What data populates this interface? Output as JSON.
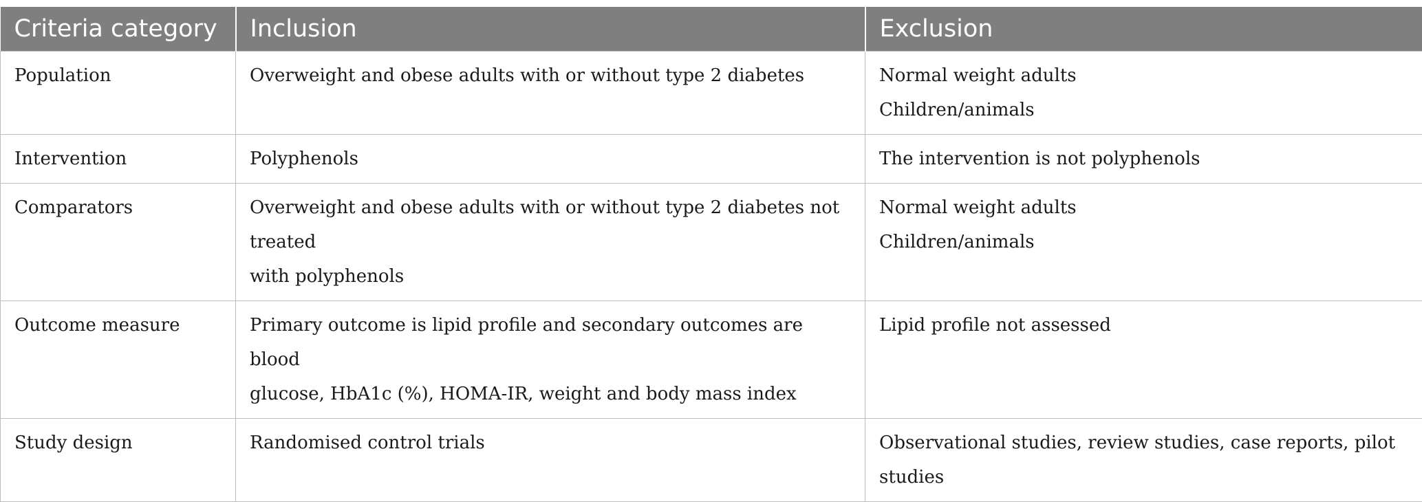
{
  "header": {
    "col1": "Criteria category",
    "col2": "Inclusion",
    "col3": "Exclusion"
  },
  "rows": [
    {
      "category": "Population",
      "inclusion": [
        "Overweight and obese adults with or without type 2 diabetes"
      ],
      "exclusion": [
        "Normal weight adults",
        "Children/animals"
      ]
    },
    {
      "category": "Intervention",
      "inclusion": [
        "Polyphenols"
      ],
      "exclusion": [
        "The intervention is not polyphenols"
      ]
    },
    {
      "category": "Comparators",
      "inclusion": [
        "Overweight and obese adults with or without type 2 diabetes not treated",
        "with polyphenols"
      ],
      "exclusion": [
        "Normal weight adults",
        "Children/animals"
      ]
    },
    {
      "category": "Outcome measure",
      "inclusion": [
        "Primary outcome is lipid profile and secondary outcomes are blood",
        "glucose, HbA1c (%), HOMA-IR, weight and body mass index"
      ],
      "exclusion": [
        "Lipid profile not assessed"
      ]
    },
    {
      "category": "Study design",
      "inclusion": [
        "Randomised control trials"
      ],
      "exclusion": [
        "Observational studies, review studies, case reports, pilot studies"
      ]
    }
  ]
}
